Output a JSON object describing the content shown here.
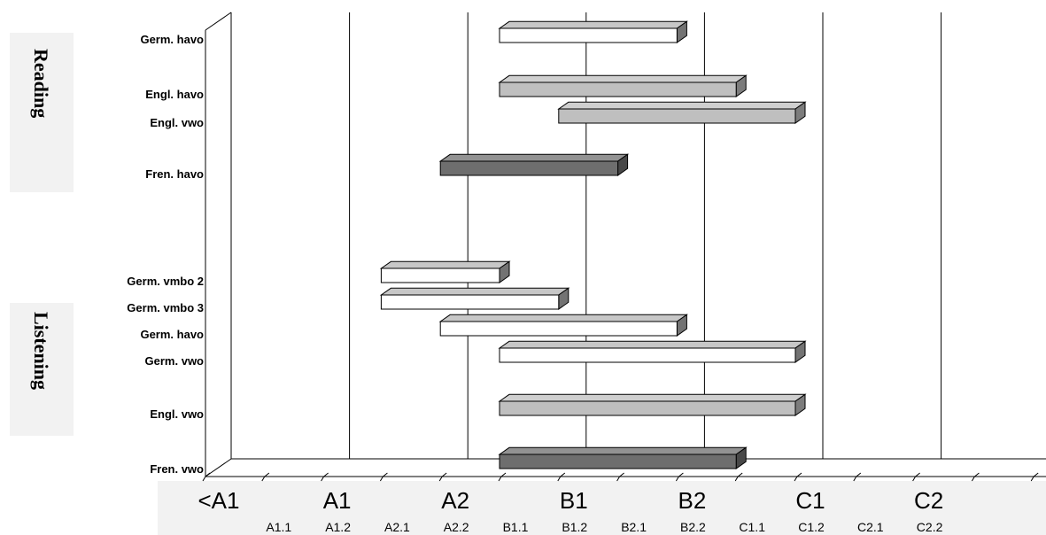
{
  "chart_data": {
    "type": "bar",
    "orientation": "horizontal",
    "style": "3d-floating-range-bars",
    "title": "",
    "xlabel": "",
    "ylabel": "",
    "x_levels": [
      "A1.1",
      "A1.2",
      "A2.1",
      "A2.2",
      "B1.1",
      "B1.2",
      "B2.1",
      "B2.2",
      "C1.1",
      "C1.2",
      "C2.1",
      "C2.2"
    ],
    "major_tick_labels": [
      "<A1",
      "A1",
      "A2",
      "B1",
      "B2",
      "C1",
      "C2"
    ],
    "minor_tick_labels": [
      "A1.1",
      "A1.2",
      "A2.1",
      "A2.2",
      "B1.1",
      "B1.2",
      "B2.1",
      "B2.2",
      "C1.1",
      "C1.2",
      "C2.1",
      "C2.2"
    ],
    "x_range_index": [
      0,
      13
    ],
    "groups": [
      {
        "name": "Reading",
        "bars": [
          {
            "label": "Germ. havo",
            "from": "B1.1",
            "to": "B2.2",
            "color": "#ffffff"
          },
          {
            "label": "Engl. havo",
            "from": "B1.1",
            "to": "C1.1",
            "color": "#bfbfbf"
          },
          {
            "label": "Engl.  vwo",
            "from": "B1.2",
            "to": "C1.2",
            "color": "#bfbfbf"
          },
          {
            "label": "Fren. havo",
            "from": "A2.2",
            "to": "B2.1",
            "color": "#6e6e6e"
          }
        ]
      },
      {
        "name": "Listening",
        "bars": [
          {
            "label": "Germ. vmbo 2",
            "from": "A2.1",
            "to": "B1.1",
            "color": "#ffffff"
          },
          {
            "label": "Germ. vmbo 3",
            "from": "A2.1",
            "to": "B1.2",
            "color": "#ffffff"
          },
          {
            "label": "Germ. havo",
            "from": "A2.2",
            "to": "B2.2",
            "color": "#ffffff"
          },
          {
            "label": "Germ. vwo",
            "from": "B1.1",
            "to": "C1.2",
            "color": "#ffffff"
          },
          {
            "label": "Engl.  vwo",
            "from": "B1.1",
            "to": "C1.2",
            "color": "#bfbfbf"
          },
          {
            "label": "Fren.  vwo",
            "from": "B1.1",
            "to": "C1.1",
            "color": "#6e6e6e"
          }
        ]
      }
    ],
    "grid": true,
    "legend": "none"
  }
}
